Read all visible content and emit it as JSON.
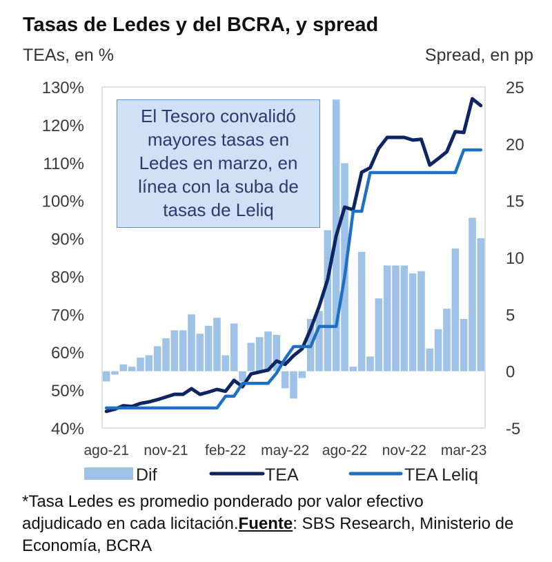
{
  "header": {
    "title": "Tasas de Ledes y del BCRA, y spread",
    "left_axis_title": "TEAs, en %",
    "right_axis_title": "Spread, en pp"
  },
  "annotation": {
    "lines": [
      "El Tesoro convalidó",
      "mayores tasas en",
      "Ledes en marzo, en",
      "línea con la suba de",
      "tasas de Leliq"
    ]
  },
  "legend": {
    "dif": "Dif",
    "tea": "TEA",
    "leliq": "TEA Leliq"
  },
  "footnote": {
    "line1": "*Tasa Ledes es promedio ponderado por valor efectivo",
    "line2_pre": "adjudicado en cada licitación.",
    "source_label": "Fuente",
    "line2_post": ": SBS Research, Ministerio de",
    "line3": "Economía, BCRA"
  },
  "colors": {
    "dif": "#9fc3e7",
    "tea": "#0e2561",
    "leliq": "#1f70c2",
    "frame": "#d6d6d6",
    "tick_text": "#3a3a3a",
    "annotation_fill": "#d0e1f5",
    "annotation_border": "#5b8ecb"
  },
  "chart_data": {
    "type": "bar",
    "combo": "bars (Dif, right axis) + lines (TEA, TEA Leliq, left axis)",
    "title": "Tasas de Ledes y del BCRA, y spread",
    "xlabel": "",
    "ylabel": "TEAs, en %",
    "y2label": "Spread, en pp",
    "ylim": [
      40,
      130
    ],
    "y2lim": [
      -5,
      25
    ],
    "yticks": [
      40,
      50,
      60,
      70,
      80,
      90,
      100,
      110,
      120,
      130
    ],
    "ytick_labels": [
      "40%",
      "50%",
      "60%",
      "70%",
      "80%",
      "90%",
      "100%",
      "110%",
      "120%",
      "130%"
    ],
    "y2ticks": [
      -5,
      0,
      5,
      10,
      15,
      20,
      25
    ],
    "y2tick_labels": [
      "-5",
      "0",
      "5",
      "10",
      "15",
      "20",
      "25"
    ],
    "categories": [
      1,
      2,
      3,
      4,
      5,
      6,
      7,
      8,
      9,
      10,
      11,
      12,
      13,
      14,
      15,
      16,
      17,
      18,
      19,
      20,
      21,
      22,
      23,
      24,
      25,
      26,
      27,
      28,
      29,
      30,
      31,
      32,
      33,
      34,
      35,
      36,
      37,
      38,
      39,
      40,
      41,
      42,
      43,
      44,
      45
    ],
    "x_tick_labels": [
      {
        "index": 0,
        "label": "ago-21"
      },
      {
        "index": 7,
        "label": "nov-21"
      },
      {
        "index": 14,
        "label": "feb-22"
      },
      {
        "index": 21,
        "label": "may-22"
      },
      {
        "index": 28,
        "label": "ago-22"
      },
      {
        "index": 35,
        "label": "nov-22"
      },
      {
        "index": 42,
        "label": "mar-23"
      }
    ],
    "series": [
      {
        "name": "Dif",
        "kind": "bar",
        "axis": "right",
        "values": [
          -0.9,
          -0.3,
          0.6,
          0.4,
          1.2,
          1.4,
          2.2,
          2.9,
          3.6,
          3.6,
          5.0,
          3.3,
          4.0,
          4.7,
          1.4,
          4.2,
          -0.9,
          2.5,
          3.0,
          3.5,
          3.2,
          -1.5,
          -2.4,
          -0.6,
          4.6,
          5.3,
          12.4,
          23.9,
          18.3,
          0.4,
          10.5,
          1.3,
          6.4,
          9.3,
          9.3,
          9.3,
          8.6,
          8.8,
          2.0,
          3.7,
          5.5,
          10.8,
          4.6,
          13.5,
          11.7
        ]
      },
      {
        "name": "TEA",
        "kind": "line",
        "axis": "left",
        "values": [
          44.4,
          45.0,
          45.9,
          45.7,
          46.5,
          46.9,
          47.5,
          48.2,
          48.9,
          48.9,
          50.4,
          48.9,
          49.5,
          50.2,
          49.7,
          52.6,
          50.9,
          54.3,
          54.8,
          55.3,
          57.7,
          56.8,
          59.1,
          60.9,
          66.1,
          72.1,
          79.2,
          90.7,
          98.3,
          97.6,
          107.5,
          108.7,
          113.8,
          116.7,
          116.7,
          116.7,
          116.0,
          116.2,
          109.4,
          111.1,
          112.9,
          118.2,
          118.0,
          126.9,
          125.1
        ]
      },
      {
        "name": "TEA Leliq",
        "kind": "line",
        "axis": "left",
        "values": [
          45.3,
          45.3,
          45.3,
          45.3,
          45.3,
          45.3,
          45.3,
          45.3,
          45.3,
          45.3,
          45.3,
          45.3,
          45.3,
          45.3,
          48.4,
          48.4,
          51.8,
          51.8,
          51.8,
          51.8,
          54.5,
          58.3,
          61.5,
          61.5,
          61.5,
          66.8,
          66.8,
          66.8,
          80.0,
          97.2,
          97.2,
          107.4,
          107.4,
          107.4,
          107.4,
          107.4,
          107.4,
          107.4,
          107.4,
          107.4,
          107.4,
          107.4,
          113.4,
          113.4,
          113.4
        ]
      }
    ],
    "legend": "bottom",
    "grid": false
  }
}
